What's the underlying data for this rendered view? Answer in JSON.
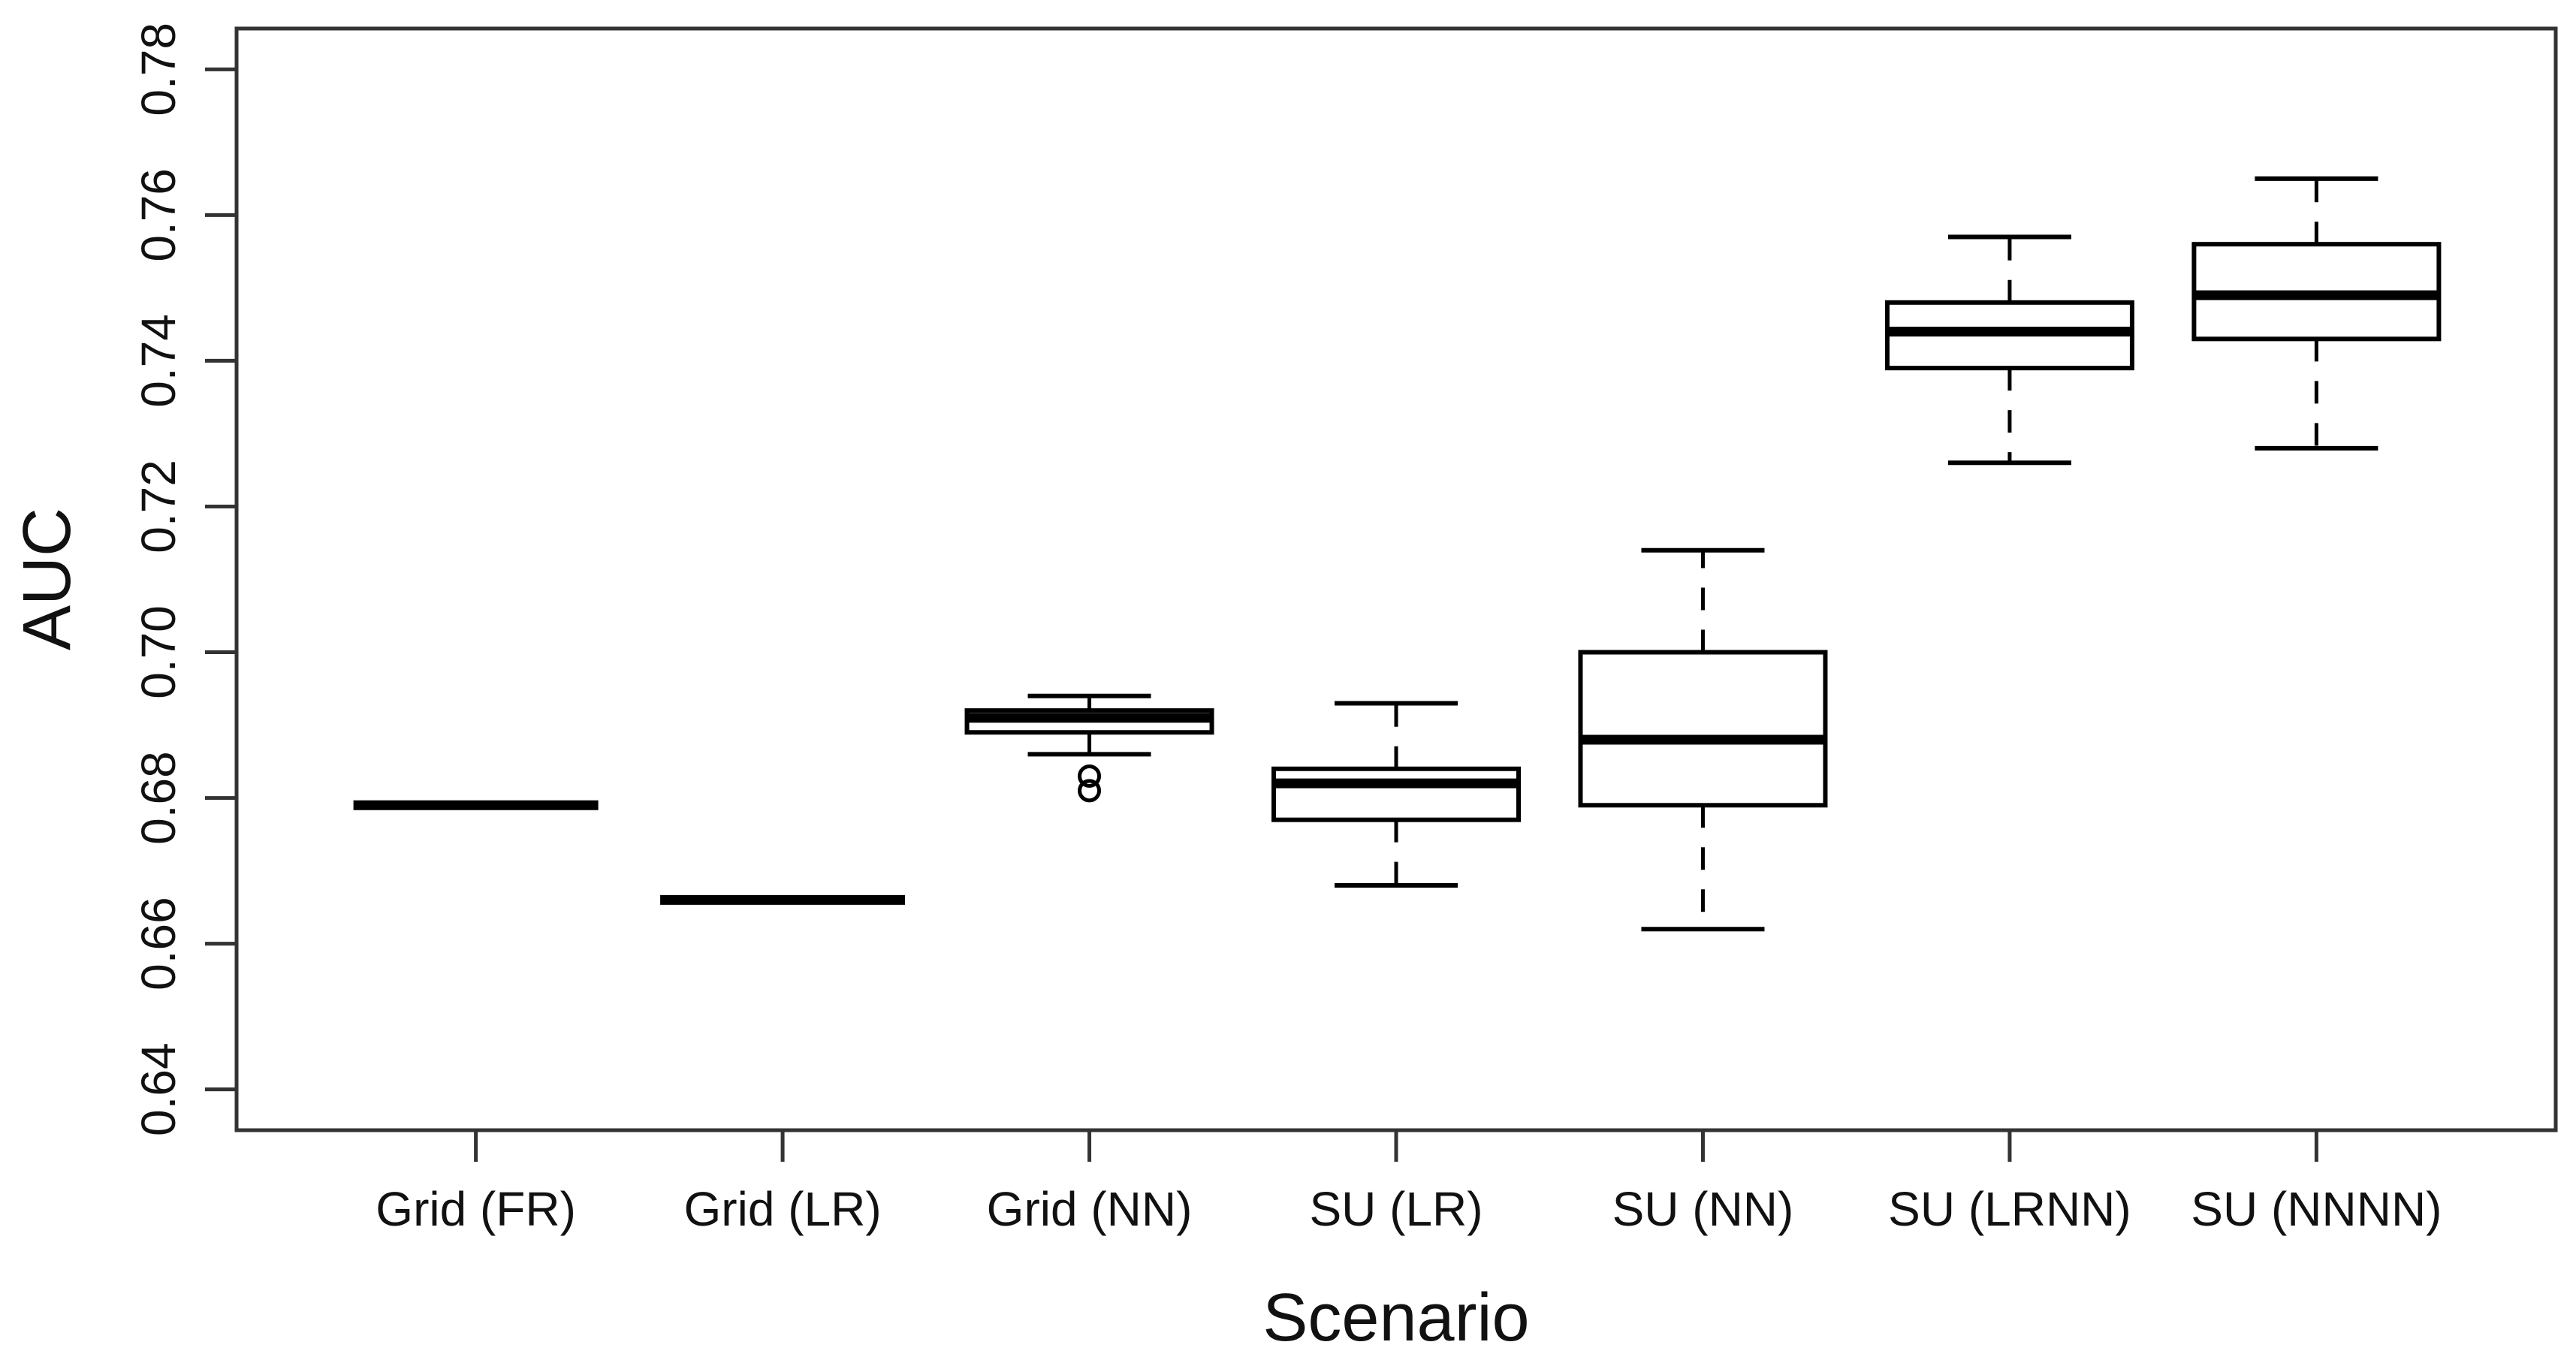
{
  "chart_data": {
    "type": "boxplot",
    "title": "",
    "xlabel": "Scenario",
    "ylabel": "AUC",
    "ylim": [
      0.6344,
      0.7856
    ],
    "yticks": [
      0.64,
      0.66,
      0.68,
      0.7,
      0.72,
      0.74,
      0.76,
      0.78
    ],
    "ytick_labels": [
      "0.64",
      "0.66",
      "0.68",
      "0.70",
      "0.72",
      "0.74",
      "0.76",
      "0.78"
    ],
    "grid": "off",
    "legend": "none",
    "categories": [
      "Grid (FR)",
      "Grid (LR)",
      "Grid (NN)",
      "SU (LR)",
      "SU (NN)",
      "SU (LRNN)",
      "SU (NNNN)"
    ],
    "boxes": [
      {
        "category": "Grid (FR)",
        "whisker_low": 0.679,
        "q1": 0.679,
        "median": 0.679,
        "q3": 0.679,
        "whisker_high": 0.679,
        "outliers": [],
        "degenerate": true
      },
      {
        "category": "Grid (LR)",
        "whisker_low": 0.666,
        "q1": 0.666,
        "median": 0.666,
        "q3": 0.666,
        "whisker_high": 0.666,
        "outliers": [],
        "degenerate": true
      },
      {
        "category": "Grid (NN)",
        "whisker_low": 0.686,
        "q1": 0.689,
        "median": 0.691,
        "q3": 0.692,
        "whisker_high": 0.694,
        "outliers": [
          0.683,
          0.681
        ],
        "degenerate": false
      },
      {
        "category": "SU (LR)",
        "whisker_low": 0.668,
        "q1": 0.677,
        "median": 0.682,
        "q3": 0.684,
        "whisker_high": 0.693,
        "outliers": [],
        "degenerate": false
      },
      {
        "category": "SU (NN)",
        "whisker_low": 0.662,
        "q1": 0.679,
        "median": 0.688,
        "q3": 0.7,
        "whisker_high": 0.714,
        "outliers": [],
        "degenerate": false
      },
      {
        "category": "SU (LRNN)",
        "whisker_low": 0.726,
        "q1": 0.739,
        "median": 0.744,
        "q3": 0.748,
        "whisker_high": 0.757,
        "outliers": [],
        "degenerate": false
      },
      {
        "category": "SU (NNNN)",
        "whisker_low": 0.728,
        "q1": 0.743,
        "median": 0.749,
        "q3": 0.756,
        "whisker_high": 0.765,
        "outliers": [],
        "degenerate": false
      }
    ],
    "colors": {
      "data_stroke": "#000000",
      "axis_stroke": "#333333",
      "text": "#111111",
      "background": "#ffffff"
    }
  }
}
